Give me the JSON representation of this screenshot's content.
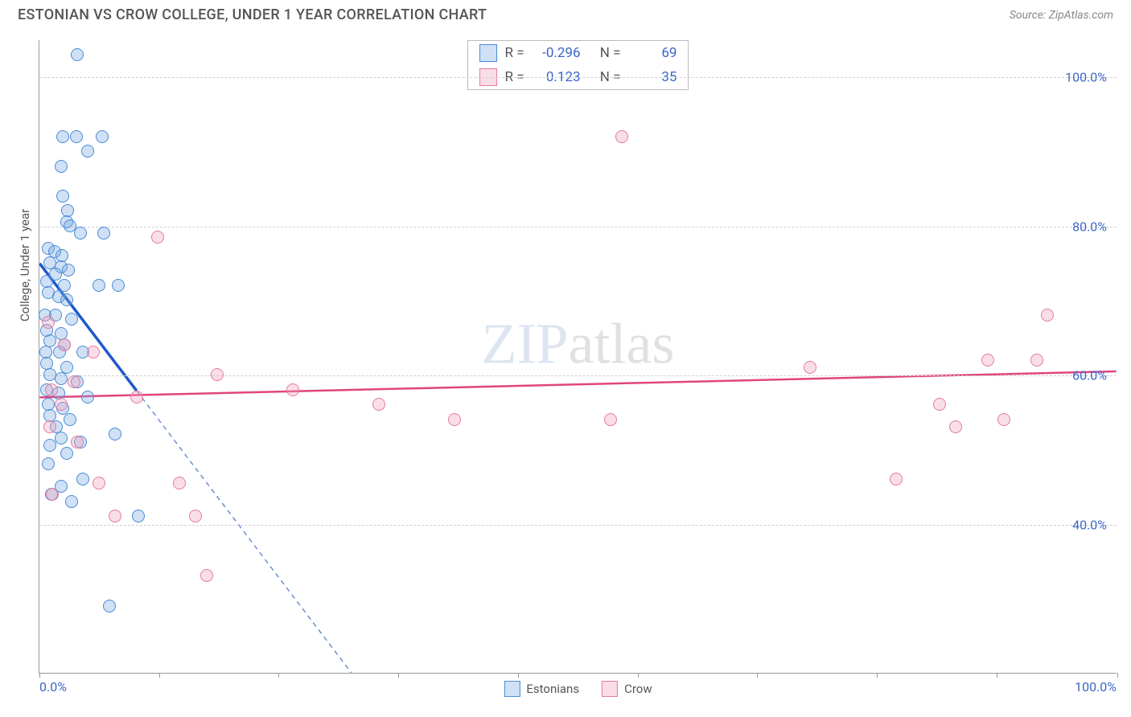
{
  "title": "ESTONIAN VS CROW COLLEGE, UNDER 1 YEAR CORRELATION CHART",
  "source": "Source: ZipAtlas.com",
  "ylabel": "College, Under 1 year",
  "watermark_part1": "ZIP",
  "watermark_part2": "atlas",
  "chart": {
    "type": "scatter",
    "xlim": [
      0,
      100
    ],
    "ylim": [
      20,
      105
    ],
    "y_gridlines": [
      40,
      60,
      80,
      100
    ],
    "y_tick_labels": [
      "40.0%",
      "60.0%",
      "80.0%",
      "100.0%"
    ],
    "x_ticks": [
      0,
      11.1,
      22.2,
      33.3,
      44.4,
      55.5,
      66.6,
      77.7,
      88.8,
      100
    ],
    "x_tick_labels_left": "0.0%",
    "x_tick_labels_right": "100.0%",
    "background_color": "#ffffff",
    "axis_color": "#999999",
    "grid_color": "#d0d0d0",
    "marker_radius": 8,
    "series": [
      {
        "name": "Estonians",
        "fill": "rgba(120,170,225,0.35)",
        "stroke": "#4a8bd6",
        "trend_color": "#1f58c9",
        "trend_dash_color": "#6a8fd0",
        "trend_y_at_x0": 75,
        "trend_y_at_x100": -115,
        "stats": {
          "R_label": "R =",
          "R": "-0.296",
          "N_label": "N =",
          "N": "69"
        },
        "points": [
          [
            3.5,
            103
          ],
          [
            2.2,
            92
          ],
          [
            3.4,
            92
          ],
          [
            5.8,
            92
          ],
          [
            4.5,
            90
          ],
          [
            2.0,
            88
          ],
          [
            2.2,
            84
          ],
          [
            2.6,
            82
          ],
          [
            2.5,
            80.5
          ],
          [
            2.8,
            80
          ],
          [
            3.8,
            79
          ],
          [
            6.0,
            79
          ],
          [
            0.8,
            77
          ],
          [
            1.4,
            76.5
          ],
          [
            2.1,
            76
          ],
          [
            1.0,
            75
          ],
          [
            2.0,
            74.5
          ],
          [
            2.7,
            74
          ],
          [
            1.5,
            73.5
          ],
          [
            0.7,
            72.5
          ],
          [
            2.3,
            72
          ],
          [
            5.5,
            72
          ],
          [
            7.3,
            72
          ],
          [
            0.8,
            71
          ],
          [
            1.8,
            70.5
          ],
          [
            2.5,
            70
          ],
          [
            0.5,
            68
          ],
          [
            1.5,
            68
          ],
          [
            3.0,
            67.5
          ],
          [
            0.7,
            66
          ],
          [
            2.0,
            65.5
          ],
          [
            1.0,
            64.5
          ],
          [
            2.3,
            64
          ],
          [
            0.6,
            63
          ],
          [
            1.9,
            63
          ],
          [
            4.0,
            63
          ],
          [
            0.7,
            61.5
          ],
          [
            2.5,
            61
          ],
          [
            1.0,
            60
          ],
          [
            2.0,
            59.5
          ],
          [
            3.5,
            59
          ],
          [
            0.7,
            58
          ],
          [
            1.8,
            57.5
          ],
          [
            4.5,
            57
          ],
          [
            0.8,
            56
          ],
          [
            2.2,
            55.5
          ],
          [
            1.0,
            54.5
          ],
          [
            2.8,
            54
          ],
          [
            1.6,
            53
          ],
          [
            7.0,
            52
          ],
          [
            2.0,
            51.5
          ],
          [
            3.8,
            51
          ],
          [
            1.0,
            50.5
          ],
          [
            2.5,
            49.5
          ],
          [
            0.8,
            48
          ],
          [
            4.0,
            46
          ],
          [
            2.0,
            45
          ],
          [
            1.1,
            44
          ],
          [
            3.0,
            43
          ],
          [
            9.2,
            41
          ],
          [
            6.5,
            29
          ]
        ]
      },
      {
        "name": "Crow",
        "fill": "rgba(240,160,185,0.35)",
        "stroke": "#e47a9e",
        "trend_color": "#e0457f",
        "trend_y_at_x0": 57,
        "trend_y_at_x100": 60.5,
        "stats": {
          "R_label": "R =",
          "R": "0.123",
          "N_label": "N =",
          "N": "35"
        },
        "points": [
          [
            54.0,
            92
          ],
          [
            11.0,
            78.5
          ],
          [
            93.5,
            68
          ],
          [
            0.8,
            67
          ],
          [
            2.3,
            64
          ],
          [
            5.0,
            63
          ],
          [
            88.0,
            62
          ],
          [
            92.5,
            62
          ],
          [
            71.5,
            61
          ],
          [
            16.5,
            60
          ],
          [
            3.2,
            59
          ],
          [
            23.5,
            58
          ],
          [
            1.1,
            58
          ],
          [
            9.0,
            57
          ],
          [
            31.5,
            56
          ],
          [
            83.5,
            56
          ],
          [
            38.5,
            54
          ],
          [
            53.0,
            54
          ],
          [
            85.0,
            53
          ],
          [
            89.5,
            54
          ],
          [
            2.0,
            56
          ],
          [
            1.0,
            53
          ],
          [
            3.5,
            51
          ],
          [
            79.5,
            46
          ],
          [
            5.5,
            45.5
          ],
          [
            13.0,
            45.5
          ],
          [
            1.2,
            44
          ],
          [
            7.0,
            41
          ],
          [
            14.5,
            41
          ],
          [
            15.5,
            33
          ]
        ]
      }
    ]
  },
  "bottom_legend": [
    {
      "label": "Estonians",
      "fill": "rgba(120,170,225,0.35)",
      "stroke": "#4a8bd6"
    },
    {
      "label": "Crow",
      "fill": "rgba(240,160,185,0.35)",
      "stroke": "#e47a9e"
    }
  ]
}
